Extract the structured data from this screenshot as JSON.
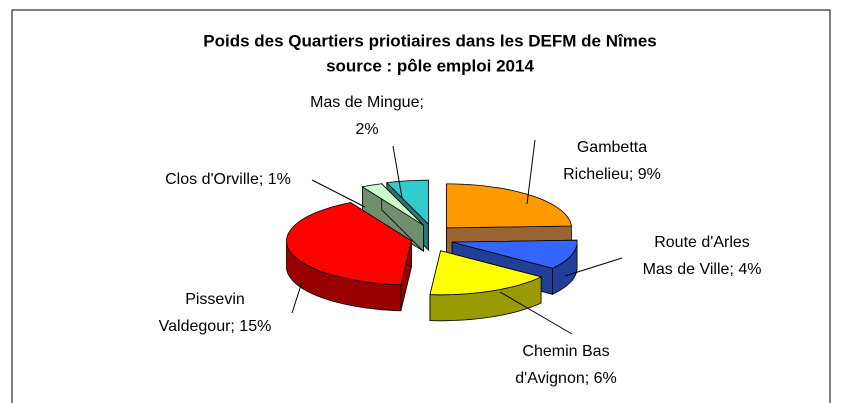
{
  "chart_data": {
    "type": "pie3d",
    "title": "Poids des Quartiers priotiaires dans les DEFM de Nîmes",
    "subtitle": "source : pôle emploi 2014",
    "values": [
      9,
      4,
      6,
      15,
      1,
      2
    ],
    "value_labels": [
      [
        "Gambetta",
        "Richelieu; 9%"
      ],
      [
        "Route d'Arles",
        "Mas de Ville; 4%"
      ],
      [
        "Chemin Bas",
        "d'Avignon; 6%"
      ],
      [
        "Pissevin",
        "Valdegour; 15%"
      ],
      [
        "Clos d'Orville; 1%"
      ],
      [
        "Mas de Mingue;",
        "2%"
      ]
    ],
    "colors": [
      "#FF9900",
      "#3366FF",
      "#FFFF00",
      "#FF0000",
      "#CCFFCC",
      "#33CCCC"
    ],
    "side_colors": [
      "#996633",
      "#1F3F99",
      "#999900",
      "#990000",
      "#6F8F6F",
      "#1F7A7A"
    ]
  }
}
